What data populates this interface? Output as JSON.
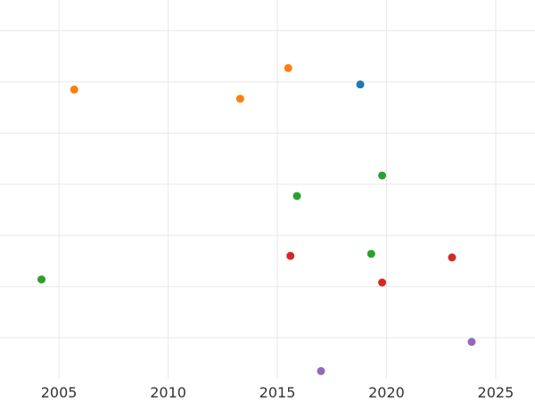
{
  "chart_data": {
    "type": "scatter",
    "title": "",
    "xlabel": "",
    "ylabel": "",
    "xlim": [
      2002.3,
      2026.8
    ],
    "ylim": [
      0,
      7.4
    ],
    "x_ticks": [
      2005,
      2010,
      2015,
      2020,
      2025
    ],
    "y_ticks": [
      0.8,
      1.8,
      2.8,
      3.8,
      4.8,
      5.8,
      6.8
    ],
    "grid": true,
    "legend": "none",
    "series": [
      {
        "color": "#1f77b4",
        "points": [
          {
            "x": 2018.8,
            "y": 5.75
          }
        ]
      },
      {
        "color": "#ff7f0e",
        "points": [
          {
            "x": 2005.7,
            "y": 5.65
          },
          {
            "x": 2013.3,
            "y": 5.47
          },
          {
            "x": 2015.5,
            "y": 6.07
          }
        ]
      },
      {
        "color": "#2ca02c",
        "points": [
          {
            "x": 2004.2,
            "y": 1.94
          },
          {
            "x": 2015.9,
            "y": 3.57
          },
          {
            "x": 2019.3,
            "y": 2.44
          },
          {
            "x": 2019.8,
            "y": 3.97
          }
        ]
      },
      {
        "color": "#d62728",
        "points": [
          {
            "x": 2015.6,
            "y": 2.4
          },
          {
            "x": 2019.8,
            "y": 1.88
          },
          {
            "x": 2023.0,
            "y": 2.37
          }
        ]
      },
      {
        "color": "#9467bd",
        "points": [
          {
            "x": 2017.0,
            "y": 0.15
          },
          {
            "x": 2023.9,
            "y": 0.72
          }
        ]
      }
    ]
  }
}
